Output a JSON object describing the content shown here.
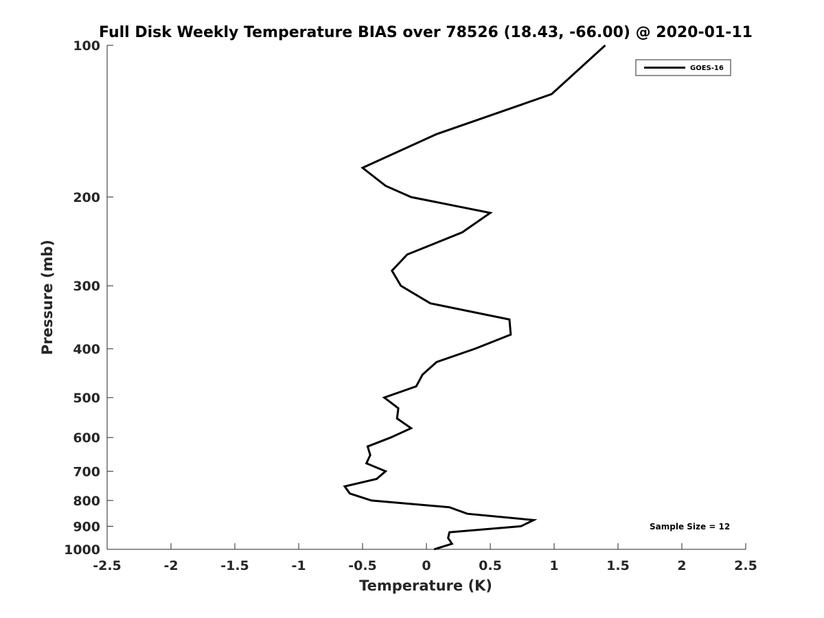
{
  "chart_data": {
    "type": "line",
    "title": "Full Disk Weekly Temperature BIAS over 78526 (18.43, -66.00) @ 2020-01-11",
    "xlabel": "Temperature (K)",
    "ylabel": "Pressure (mb)",
    "xlim": [
      -2.5,
      2.5
    ],
    "ylim": [
      100,
      1000
    ],
    "y_scale": "log",
    "y_reversed": true,
    "x_ticks": [
      -2.5,
      -2,
      -1.5,
      -1,
      -0.5,
      0,
      0.5,
      1,
      1.5,
      2,
      2.5
    ],
    "x_tick_labels": [
      "-2.5",
      "-2",
      "-1.5",
      "-1",
      "-0.5",
      "0",
      "0.5",
      "1",
      "1.5",
      "2",
      "2.5"
    ],
    "y_ticks": [
      100,
      200,
      300,
      400,
      500,
      600,
      700,
      800,
      900,
      1000
    ],
    "y_tick_labels": [
      "100",
      "200",
      "300",
      "400",
      "500",
      "600",
      "700",
      "800",
      "900",
      "1000"
    ],
    "grid": false,
    "legend_position": "top-right",
    "series": [
      {
        "name": "GOES-16",
        "color": "#000000",
        "points": [
          {
            "x": 1.4,
            "p": 100
          },
          {
            "x": 0.98,
            "p": 125
          },
          {
            "x": 0.08,
            "p": 150
          },
          {
            "x": -0.5,
            "p": 175
          },
          {
            "x": -0.32,
            "p": 190
          },
          {
            "x": -0.12,
            "p": 200
          },
          {
            "x": 0.5,
            "p": 215
          },
          {
            "x": 0.28,
            "p": 235
          },
          {
            "x": -0.15,
            "p": 260
          },
          {
            "x": -0.27,
            "p": 280
          },
          {
            "x": -0.2,
            "p": 300
          },
          {
            "x": 0.03,
            "p": 325
          },
          {
            "x": 0.65,
            "p": 350
          },
          {
            "x": 0.66,
            "p": 375
          },
          {
            "x": 0.38,
            "p": 400
          },
          {
            "x": 0.08,
            "p": 425
          },
          {
            "x": -0.03,
            "p": 450
          },
          {
            "x": -0.08,
            "p": 475
          },
          {
            "x": -0.33,
            "p": 500
          },
          {
            "x": -0.22,
            "p": 525
          },
          {
            "x": -0.23,
            "p": 550
          },
          {
            "x": -0.12,
            "p": 575
          },
          {
            "x": -0.28,
            "p": 600
          },
          {
            "x": -0.46,
            "p": 625
          },
          {
            "x": -0.44,
            "p": 650
          },
          {
            "x": -0.47,
            "p": 675
          },
          {
            "x": -0.32,
            "p": 700
          },
          {
            "x": -0.39,
            "p": 725
          },
          {
            "x": -0.64,
            "p": 750
          },
          {
            "x": -0.6,
            "p": 775
          },
          {
            "x": -0.43,
            "p": 800
          },
          {
            "x": 0.18,
            "p": 825
          },
          {
            "x": 0.32,
            "p": 850
          },
          {
            "x": 0.84,
            "p": 875
          },
          {
            "x": 0.74,
            "p": 900
          },
          {
            "x": 0.18,
            "p": 925
          },
          {
            "x": 0.17,
            "p": 950
          },
          {
            "x": 0.2,
            "p": 975
          },
          {
            "x": 0.06,
            "p": 1000
          }
        ]
      }
    ],
    "annotation": "Sample Size = 12"
  }
}
